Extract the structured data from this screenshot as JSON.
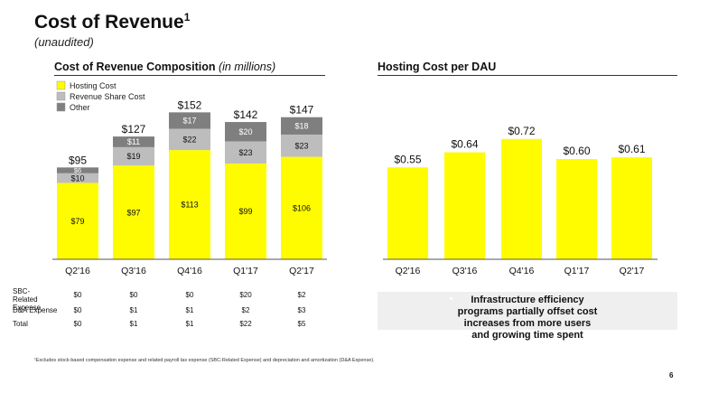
{
  "header": {
    "title": "Cost of Revenue",
    "title_sup": "1",
    "subtitle": "(unaudited)"
  },
  "left_section": {
    "title": "Cost of Revenue Composition",
    "title_note": "(in millions)"
  },
  "right_section": {
    "title": "Hosting Cost per DAU"
  },
  "chart_data": [
    {
      "type": "bar",
      "stacked": true,
      "title": "Cost of Revenue Composition (in millions)",
      "categories": [
        "Q2'16",
        "Q3'16",
        "Q4'16",
        "Q1'17",
        "Q2'17"
      ],
      "series": [
        {
          "name": "Hosting Cost",
          "values": [
            79,
            97,
            113,
            99,
            106
          ],
          "labels": [
            "$79",
            "$97",
            "$113",
            "$99",
            "$106"
          ],
          "color": "#FFFC00"
        },
        {
          "name": "Revenue Share Cost",
          "values": [
            10,
            19,
            22,
            23,
            23
          ],
          "labels": [
            "$10",
            "$19",
            "$22",
            "$23",
            "$23"
          ],
          "color": "#BDBDBD"
        },
        {
          "name": "Other",
          "values": [
            6,
            11,
            17,
            20,
            18
          ],
          "labels": [
            "$6",
            "$11",
            "$17",
            "$20",
            "$18"
          ],
          "color": "#7F7F7F"
        }
      ],
      "totals": [
        95,
        127,
        152,
        142,
        147
      ],
      "total_labels": [
        "$95",
        "$127",
        "$152",
        "$142",
        "$147"
      ],
      "ylim": [
        0,
        160
      ],
      "legend_position": "top-left",
      "grid": false
    },
    {
      "type": "bar",
      "title": "Hosting Cost per DAU",
      "categories": [
        "Q2'16",
        "Q3'16",
        "Q4'16",
        "Q1'17",
        "Q2'17"
      ],
      "values": [
        0.55,
        0.64,
        0.72,
        0.6,
        0.61
      ],
      "labels": [
        "$0.55",
        "$0.64",
        "$0.72",
        "$0.60",
        "$0.61"
      ],
      "ylim": [
        0,
        0.8
      ],
      "color": "#FFFC00",
      "grid": false
    }
  ],
  "table": {
    "rows": [
      {
        "label": "SBC-Related Expense",
        "values": [
          "$0",
          "$0",
          "$0",
          "$20",
          "$2"
        ]
      },
      {
        "label": "D&A Expense",
        "values": [
          "$0",
          "$1",
          "$1",
          "$2",
          "$3"
        ]
      },
      {
        "label": "Total",
        "values": [
          "$0",
          "$1",
          "$1",
          "$22",
          "$5"
        ]
      }
    ]
  },
  "callout": {
    "bullet": "•",
    "text": "Infrastructure efficiency programs partially offset cost increases from more users and growing time spent"
  },
  "footnote": "¹Excludes stock-based compensation expense and related payroll tax expense (SBC-Related Expense) and depreciation and amortization (D&A Expense).",
  "page_number": "6"
}
